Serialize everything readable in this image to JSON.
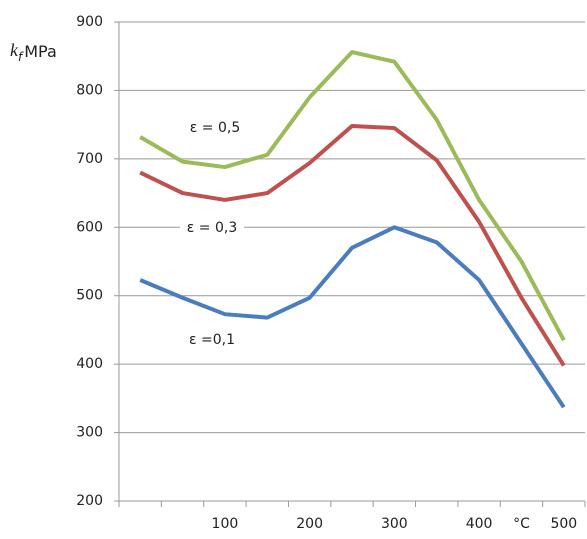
{
  "chart_data": {
    "type": "line",
    "ylabel": "k",
    "ylabel_sub": "f",
    "ylabel_unit": "MPa",
    "categories": [
      null,
      null,
      "100",
      null,
      "200",
      null,
      "300",
      null,
      "400",
      "°C",
      "500"
    ],
    "series": [
      {
        "name": "ε =0,1",
        "color": "#4a7dbf",
        "values": [
          523,
          497,
          473,
          468,
          497,
          570,
          600,
          578,
          523,
          430,
          337
        ]
      },
      {
        "name": "ε = 0,3",
        "color": "#c0504d",
        "values": [
          680,
          650,
          640,
          650,
          694,
          748,
          745,
          698,
          608,
          497,
          398
        ]
      },
      {
        "name": "ε = 0,5",
        "color": "#9bbb59",
        "values": [
          732,
          696,
          688,
          706,
          790,
          856,
          842,
          757,
          640,
          550,
          435
        ]
      }
    ],
    "ylim": [
      200,
      900
    ],
    "yticks": [
      200,
      300,
      400,
      500,
      600,
      700,
      800,
      900
    ],
    "grid": true
  }
}
